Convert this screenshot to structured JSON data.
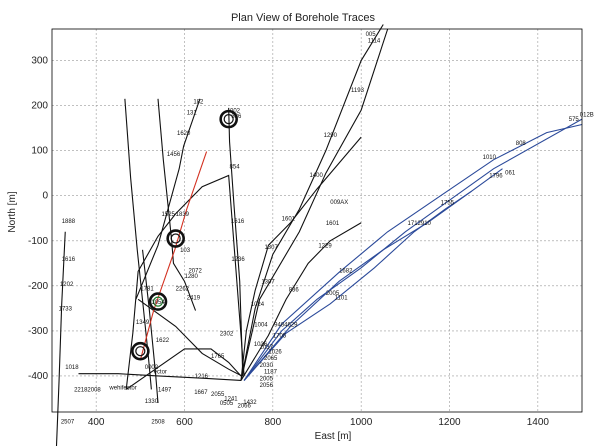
{
  "chart_data": {
    "type": "line",
    "title": "Plan View of Borehole Traces",
    "xlabel": "East [m]",
    "ylabel": "North [m]",
    "xlim": [
      300,
      1500
    ],
    "ylim": [
      -480,
      370
    ],
    "grid": true,
    "x_ticks": [
      400,
      600,
      800,
      1000,
      1200,
      1400
    ],
    "y_ticks": [
      -400,
      -300,
      -200,
      -100,
      0,
      100,
      200,
      300
    ],
    "series": [
      {
        "color": "black",
        "points": [
          [
            465,
            215
          ],
          [
            478,
            40
          ],
          [
            493,
            -120
          ],
          [
            508,
            -260
          ],
          [
            518,
            -355
          ],
          [
            525,
            -430
          ]
        ]
      },
      {
        "color": "black",
        "points": [
          [
            540,
            215
          ],
          [
            552,
            80
          ],
          [
            571,
            -100
          ],
          [
            575,
            -150
          ],
          [
            600,
            -190
          ],
          [
            625,
            -255
          ]
        ]
      },
      {
        "color": "black",
        "points": [
          [
            490,
            -230
          ],
          [
            540,
            -110
          ],
          [
            588,
            60
          ],
          [
            598,
            110
          ],
          [
            635,
            215
          ]
        ]
      },
      {
        "color": "black",
        "points": [
          [
            468,
            -430
          ],
          [
            483,
            -305
          ],
          [
            495,
            -168
          ],
          [
            540,
            -90
          ],
          [
            580,
            -40
          ],
          [
            640,
            20
          ],
          [
            700,
            45
          ],
          [
            735,
            -400
          ]
        ]
      },
      {
        "color": "black",
        "points": [
          [
            468,
            -430
          ],
          [
            600,
            -340
          ],
          [
            660,
            -340
          ],
          [
            700,
            -370
          ],
          [
            728,
            -400
          ]
        ]
      },
      {
        "color": "black",
        "points": [
          [
            495,
            -230
          ],
          [
            580,
            -290
          ],
          [
            640,
            -350
          ],
          [
            700,
            -385
          ],
          [
            730,
            -400
          ]
        ]
      },
      {
        "color": "black",
        "points": [
          [
            700,
            195
          ],
          [
            702,
            120
          ],
          [
            712,
            -20
          ],
          [
            725,
            -190
          ],
          [
            732,
            -400
          ]
        ]
      },
      {
        "color": "black",
        "points": [
          [
            310,
            -560
          ],
          [
            316,
            -410
          ],
          [
            322,
            -240
          ],
          [
            330,
            -80
          ]
        ]
      },
      {
        "color": "black",
        "points": [
          [
            540,
            -460
          ],
          [
            535,
            -400
          ],
          [
            520,
            -250
          ],
          [
            505,
            -120
          ]
        ]
      },
      {
        "color": "black",
        "points": [
          [
            360,
            -395
          ],
          [
            450,
            -395
          ],
          [
            540,
            -400
          ],
          [
            640,
            -405
          ],
          [
            728,
            -410
          ]
        ]
      },
      {
        "color": "black",
        "points": [
          [
            728,
            -410
          ],
          [
            770,
            -230
          ],
          [
            860,
            -80
          ],
          [
            920,
            50
          ],
          [
            1000,
            190
          ],
          [
            1060,
            370
          ]
        ]
      },
      {
        "color": "black",
        "points": [
          [
            728,
            -410
          ],
          [
            760,
            -250
          ],
          [
            800,
            -130
          ],
          [
            860,
            -30
          ],
          [
            920,
            100
          ],
          [
            1000,
            300
          ],
          [
            1050,
            380
          ]
        ]
      },
      {
        "color": "black",
        "points": [
          [
            728,
            -410
          ],
          [
            740,
            -300
          ],
          [
            760,
            -210
          ],
          [
            790,
            -110
          ],
          [
            840,
            -60
          ],
          [
            900,
            15
          ],
          [
            1000,
            130
          ]
        ]
      },
      {
        "color": "black",
        "points": [
          [
            728,
            -410
          ],
          [
            790,
            -310
          ],
          [
            830,
            -230
          ],
          [
            880,
            -150
          ],
          [
            930,
            -100
          ],
          [
            1000,
            -60
          ]
        ]
      },
      {
        "color": "blue",
        "points": [
          [
            735,
            -410
          ],
          [
            820,
            -300
          ],
          [
            900,
            -230
          ],
          [
            1000,
            -160
          ],
          [
            1100,
            -80
          ],
          [
            1200,
            -10
          ],
          [
            1300,
            60
          ],
          [
            1500,
            170
          ]
        ]
      },
      {
        "color": "blue",
        "points": [
          [
            735,
            -410
          ],
          [
            820,
            -285
          ],
          [
            950,
            -170
          ],
          [
            1060,
            -80
          ],
          [
            1180,
            0
          ],
          [
            1300,
            80
          ],
          [
            1420,
            140
          ],
          [
            1500,
            158
          ]
        ]
      },
      {
        "color": "blue",
        "points": [
          [
            735,
            -410
          ],
          [
            840,
            -290
          ],
          [
            950,
            -190
          ],
          [
            1050,
            -120
          ],
          [
            1150,
            -60
          ],
          [
            1250,
            10
          ],
          [
            1320,
            60
          ]
        ]
      },
      {
        "color": "blue",
        "points": [
          [
            735,
            -410
          ],
          [
            830,
            -305
          ],
          [
            930,
            -240
          ],
          [
            1030,
            -160
          ],
          [
            1120,
            -80
          ],
          [
            1190,
            -30
          ],
          [
            1250,
            10
          ]
        ]
      },
      {
        "color": "red",
        "points": [
          [
            500,
            -365
          ],
          [
            530,
            -255
          ],
          [
            578,
            -120
          ],
          [
            605,
            -30
          ],
          [
            650,
            98
          ]
        ]
      }
    ],
    "circles": [
      [
        700,
        170
      ],
      [
        580,
        -95
      ],
      [
        540,
        -235
      ],
      [
        500,
        -345
      ]
    ],
    "circle_ring_colors": [
      "#111",
      "#111",
      "#1a7a2a",
      "#111"
    ],
    "labels": [
      {
        "x": 1010,
        "y": 355,
        "text": "005"
      },
      {
        "x": 1015,
        "y": 340,
        "text": "1114"
      },
      {
        "x": 1495,
        "y": 176,
        "text": "012B"
      },
      {
        "x": 1470,
        "y": 166,
        "text": "575"
      },
      {
        "x": 977,
        "y": 230,
        "text": "1193"
      },
      {
        "x": 620,
        "y": 205,
        "text": "182"
      },
      {
        "x": 605,
        "y": 180,
        "text": "131"
      },
      {
        "x": 703,
        "y": 185,
        "text": "002"
      },
      {
        "x": 706,
        "y": 173,
        "text": "386"
      },
      {
        "x": 583,
        "y": 135,
        "text": "1620"
      },
      {
        "x": 915,
        "y": 130,
        "text": "1290"
      },
      {
        "x": 1350,
        "y": 113,
        "text": "808"
      },
      {
        "x": 1275,
        "y": 82,
        "text": "1010"
      },
      {
        "x": 1326,
        "y": 47,
        "text": "061"
      },
      {
        "x": 1290,
        "y": 40,
        "text": "1796"
      },
      {
        "x": 560,
        "y": 88,
        "text": "1456"
      },
      {
        "x": 702,
        "y": 60,
        "text": "854"
      },
      {
        "x": 883,
        "y": 41,
        "text": "1400"
      },
      {
        "x": 930,
        "y": -18,
        "text": "009AX"
      },
      {
        "x": 1180,
        "y": -20,
        "text": "1755"
      },
      {
        "x": 548,
        "y": -45,
        "text": "1525"
      },
      {
        "x": 580,
        "y": -45,
        "text": "1839"
      },
      {
        "x": 820,
        "y": -55,
        "text": "1601"
      },
      {
        "x": 920,
        "y": -65,
        "text": "1601"
      },
      {
        "x": 1105,
        "y": -65,
        "text": "1712910"
      },
      {
        "x": 705,
        "y": -60,
        "text": "1616"
      },
      {
        "x": 322,
        "y": -60,
        "text": "1888"
      },
      {
        "x": 903,
        "y": -115,
        "text": "1229"
      },
      {
        "x": 781,
        "y": -118,
        "text": "1307"
      },
      {
        "x": 590,
        "y": -125,
        "text": "103"
      },
      {
        "x": 706,
        "y": -145,
        "text": "1236"
      },
      {
        "x": 322,
        "y": -145,
        "text": "1616"
      },
      {
        "x": 609,
        "y": -170,
        "text": "2072"
      },
      {
        "x": 950,
        "y": -170,
        "text": "1682"
      },
      {
        "x": 600,
        "y": -183,
        "text": "1280"
      },
      {
        "x": 318,
        "y": -200,
        "text": "1202"
      },
      {
        "x": 774,
        "y": -195,
        "text": "1307"
      },
      {
        "x": 500,
        "y": -210,
        "text": "1781"
      },
      {
        "x": 580,
        "y": -210,
        "text": "2262"
      },
      {
        "x": 836,
        "y": -213,
        "text": "836"
      },
      {
        "x": 920,
        "y": -220,
        "text": "2005"
      },
      {
        "x": 605,
        "y": -230,
        "text": "2419"
      },
      {
        "x": 940,
        "y": -230,
        "text": "1101"
      },
      {
        "x": 525,
        "y": -240,
        "text": "1054"
      },
      {
        "x": 750,
        "y": -245,
        "text": "1024"
      },
      {
        "x": 315,
        "y": -255,
        "text": "1733"
      },
      {
        "x": 490,
        "y": -285,
        "text": "1349"
      },
      {
        "x": 758,
        "y": -290,
        "text": "1004"
      },
      {
        "x": 803,
        "y": -290,
        "text": "9484629"
      },
      {
        "x": 680,
        "y": -310,
        "text": "2302"
      },
      {
        "x": 535,
        "y": -325,
        "text": "1622"
      },
      {
        "x": 757,
        "y": -333,
        "text": "1036"
      },
      {
        "x": 770,
        "y": -340,
        "text": "2037"
      },
      {
        "x": 800,
        "y": -315,
        "text": "1705"
      },
      {
        "x": 790,
        "y": -350,
        "text": "1026"
      },
      {
        "x": 660,
        "y": -360,
        "text": "1765"
      },
      {
        "x": 780,
        "y": -365,
        "text": "2065"
      },
      {
        "x": 770,
        "y": -380,
        "text": "2030"
      },
      {
        "x": 330,
        "y": -385,
        "text": "1018"
      },
      {
        "x": 510,
        "y": -385,
        "text": "0002"
      },
      {
        "x": 530,
        "y": -395,
        "text": "ector"
      },
      {
        "x": 623,
        "y": -405,
        "text": "1216"
      },
      {
        "x": 780,
        "y": -395,
        "text": "1187"
      },
      {
        "x": 770,
        "y": -410,
        "text": "2005"
      },
      {
        "x": 660,
        "y": -445,
        "text": "2055"
      },
      {
        "x": 690,
        "y": -455,
        "text": "1241"
      },
      {
        "x": 770,
        "y": -425,
        "text": "2056"
      },
      {
        "x": 350,
        "y": -435,
        "text": "22182008"
      },
      {
        "x": 430,
        "y": -430,
        "text": "wehifector"
      },
      {
        "x": 540,
        "y": -435,
        "text": "1497"
      },
      {
        "x": 622,
        "y": -440,
        "text": "1667"
      },
      {
        "x": 680,
        "y": -465,
        "text": "0505"
      },
      {
        "x": 733,
        "y": -462,
        "text": "1432"
      },
      {
        "x": 510,
        "y": -460,
        "text": "1330"
      },
      {
        "x": 720,
        "y": -470,
        "text": "2066"
      },
      {
        "x": 320,
        "y": -505,
        "text": "2507"
      },
      {
        "x": 525,
        "y": -505,
        "text": "2508"
      }
    ]
  }
}
